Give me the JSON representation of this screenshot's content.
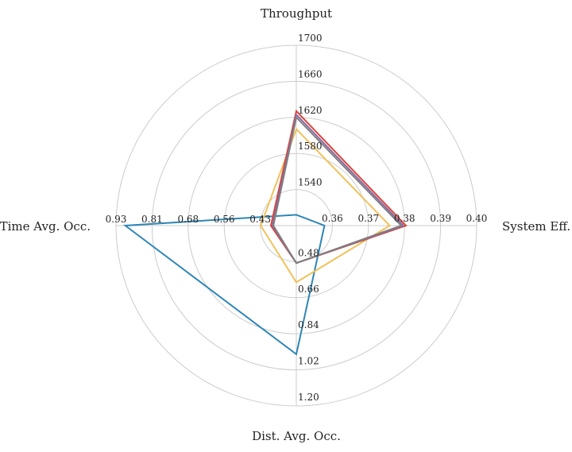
{
  "chart_data": {
    "type": "radar",
    "axes": [
      {
        "name": "Throughput",
        "ticks": [
          "1540",
          "1580",
          "1620",
          "1660",
          "1700"
        ],
        "range": [
          1500,
          1700
        ]
      },
      {
        "name": "System Eff.",
        "ticks": [
          "0.36",
          "0.37",
          "0.38",
          "0.39",
          "0.40"
        ],
        "range": [
          0.35,
          0.4
        ]
      },
      {
        "name": "Dist. Avg. Occ.",
        "ticks": [
          "0.48",
          "0.66",
          "0.84",
          "1.02",
          "1.20"
        ],
        "range": [
          0.3,
          1.2
        ]
      },
      {
        "name": "Time Avg. Occ.",
        "ticks": [
          "0.43",
          "0.56",
          "0.68",
          "0.81",
          "0.93"
        ],
        "range": [
          0.31,
          0.93
        ]
      }
    ],
    "series": [
      {
        "color": "#2e86b5",
        "values": [
          1512,
          0.3578,
          0.942,
          0.898
        ]
      },
      {
        "color": "#f2c15a",
        "values": [
          1607,
          0.3759,
          0.583,
          0.4325
        ]
      },
      {
        "color": "#d9453b",
        "values": [
          1627,
          0.3804,
          0.487,
          0.3975
        ]
      },
      {
        "color": "#8a68a6",
        "values": [
          1623,
          0.3797,
          0.487,
          0.392
        ]
      },
      {
        "color": "#7f7f7f",
        "values": [
          1620,
          0.3791,
          0.487,
          0.389
        ]
      }
    ],
    "grid": true,
    "legend": "none"
  }
}
